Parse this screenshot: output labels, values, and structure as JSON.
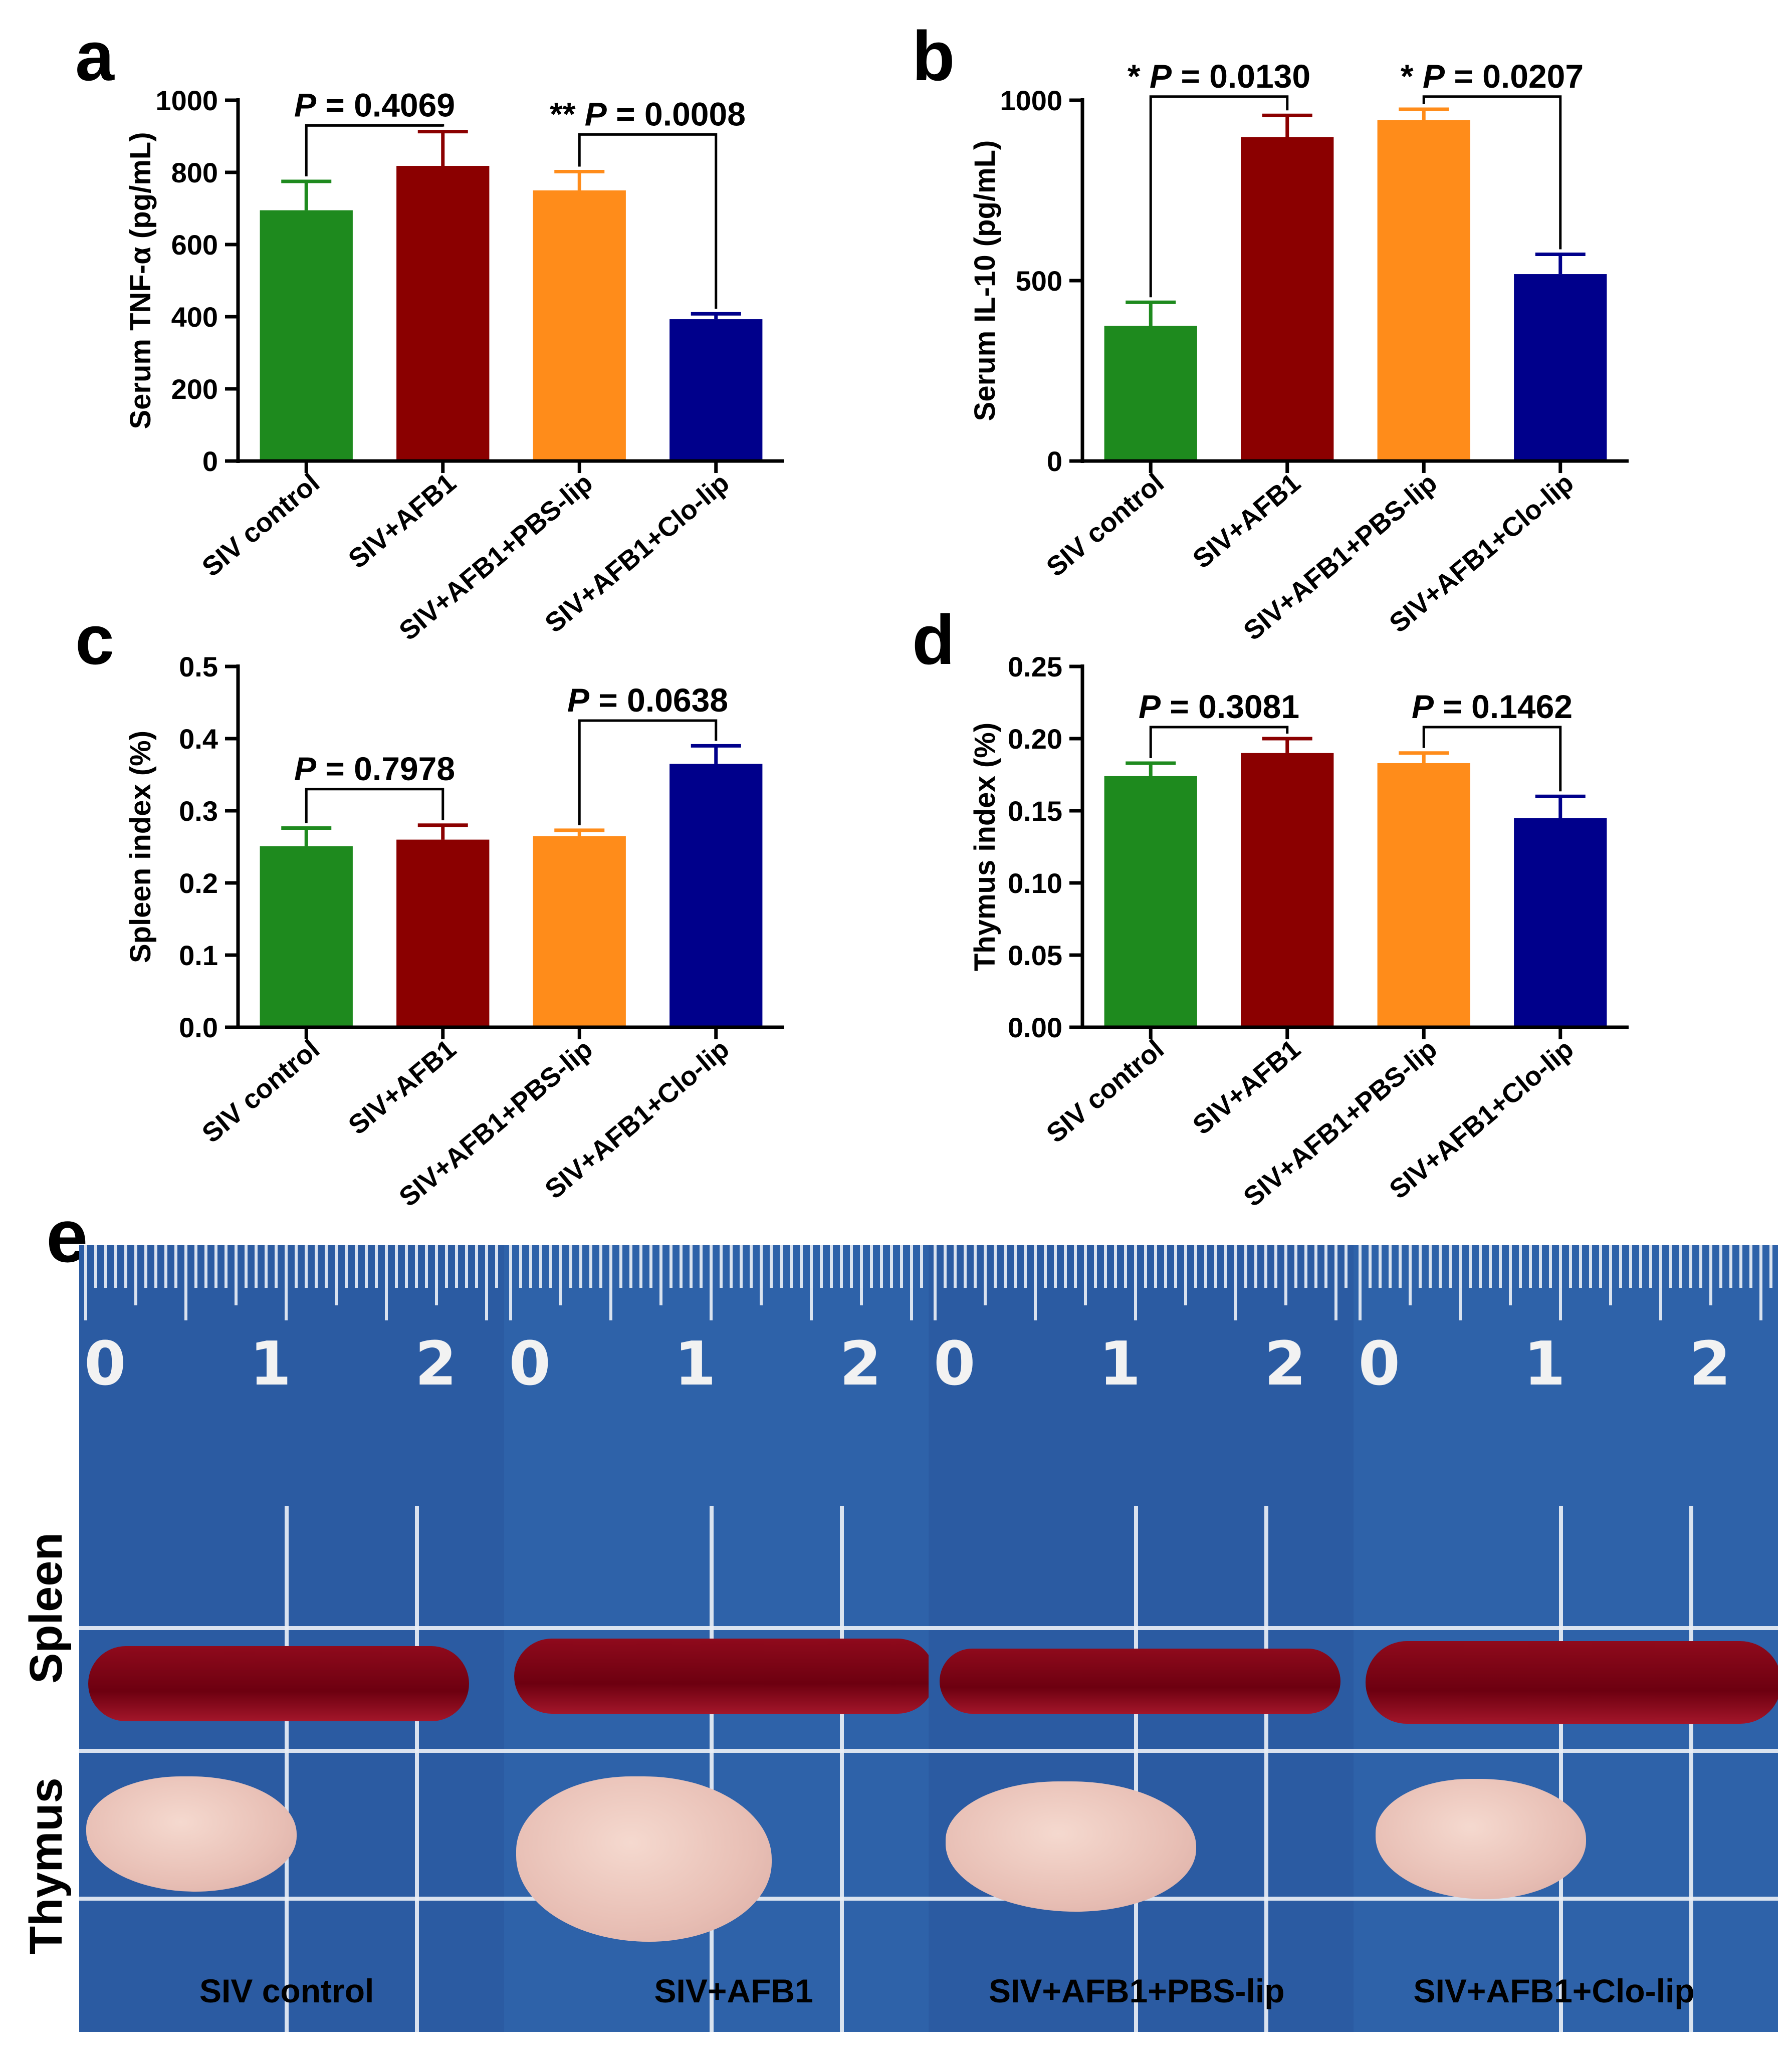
{
  "chart_data": [
    {
      "type": "bar",
      "panel": "a",
      "title": "",
      "xlabel": "",
      "ylabel": "Serum TNF-α (pg/mL)",
      "categories": [
        "SIV control",
        "SIV+AFB1",
        "SIV+AFB1+PBS-lip",
        "SIV+AFB1+Clo-lip"
      ],
      "values": [
        695,
        818,
        750,
        393
      ],
      "errors": [
        80,
        95,
        52,
        15
      ],
      "colors": [
        "#1e8a1e",
        "#8b0000",
        "#ff8c1a",
        "#00008b"
      ],
      "ylim": [
        0,
        1000
      ],
      "yticks": [
        "0",
        "200",
        "400",
        "600",
        "800",
        "1000"
      ],
      "yticks_values": [
        0,
        200,
        400,
        600,
        800,
        1000
      ],
      "comparisons": [
        {
          "from": 0,
          "to": 1,
          "stars": "",
          "p_label": "P",
          "p_value": " = 0.4069",
          "y": 930
        },
        {
          "from": 2,
          "to": 3,
          "stars": "**",
          "p_label": "P",
          "p_value": " = 0.0008",
          "y": 905
        }
      ]
    },
    {
      "type": "bar",
      "panel": "b",
      "title": "",
      "xlabel": "",
      "ylabel": "Serum IL-10 (pg/mL)",
      "categories": [
        "SIV control",
        "SIV+AFB1",
        "SIV+AFB1+PBS-lip",
        "SIV+AFB1+Clo-lip"
      ],
      "values": [
        375,
        898,
        945,
        518
      ],
      "errors": [
        65,
        60,
        30,
        55
      ],
      "colors": [
        "#1e8a1e",
        "#8b0000",
        "#ff8c1a",
        "#00008b"
      ],
      "ylim": [
        0,
        1000
      ],
      "yticks": [
        "0",
        "500",
        "1000"
      ],
      "yticks_values": [
        0,
        500,
        1000
      ],
      "comparisons": [
        {
          "from": 0,
          "to": 1,
          "stars": "*",
          "p_label": "P",
          "p_value": " = 0.0130",
          "y": 1010
        },
        {
          "from": 2,
          "to": 3,
          "stars": "*",
          "p_label": "P",
          "p_value": " = 0.0207",
          "y": 1010
        }
      ]
    },
    {
      "type": "bar",
      "panel": "c",
      "title": "",
      "xlabel": "",
      "ylabel": "Spleen index (%)",
      "categories": [
        "SIV control",
        "SIV+AFB1",
        "SIV+AFB1+PBS-lip",
        "SIV+AFB1+Clo-lip"
      ],
      "values": [
        0.251,
        0.26,
        0.265,
        0.365
      ],
      "errors": [
        0.025,
        0.02,
        0.008,
        0.025
      ],
      "colors": [
        "#1e8a1e",
        "#8b0000",
        "#ff8c1a",
        "#00008b"
      ],
      "ylim": [
        0,
        0.5
      ],
      "yticks": [
        "0.0",
        "0.1",
        "0.2",
        "0.3",
        "0.4",
        "0.5"
      ],
      "yticks_values": [
        0,
        0.1,
        0.2,
        0.3,
        0.4,
        0.5
      ],
      "comparisons": [
        {
          "from": 0,
          "to": 1,
          "stars": "",
          "p_label": "P",
          "p_value": " = 0.7978",
          "y": 0.33
        },
        {
          "from": 2,
          "to": 3,
          "stars": "",
          "p_label": "P",
          "p_value": " = 0.0638",
          "y": 0.425
        }
      ]
    },
    {
      "type": "bar",
      "panel": "d",
      "title": "",
      "xlabel": "",
      "ylabel": "Thymus index (%)",
      "categories": [
        "SIV control",
        "SIV+AFB1",
        "SIV+AFB1+PBS-lip",
        "SIV+AFB1+Clo-lip"
      ],
      "values": [
        0.174,
        0.19,
        0.183,
        0.145
      ],
      "errors": [
        0.009,
        0.01,
        0.007,
        0.015
      ],
      "colors": [
        "#1e8a1e",
        "#8b0000",
        "#ff8c1a",
        "#00008b"
      ],
      "ylim": [
        0,
        0.25
      ],
      "yticks": [
        "0.00",
        "0.05",
        "0.10",
        "0.15",
        "0.20",
        "0.25"
      ],
      "yticks_values": [
        0,
        0.05,
        0.1,
        0.15,
        0.2,
        0.25
      ],
      "comparisons": [
        {
          "from": 0,
          "to": 1,
          "stars": "",
          "p_label": "P",
          "p_value": " = 0.3081",
          "y": 0.208
        },
        {
          "from": 2,
          "to": 3,
          "stars": "",
          "p_label": "P",
          "p_value": " = 0.1462",
          "y": 0.208
        }
      ]
    }
  ],
  "photo": {
    "panel": "e",
    "row_labels": [
      "Spleen",
      "Thymus"
    ],
    "sample_labels": [
      "SIV control",
      "SIV+AFB1",
      "SIV+AFB1+PBS-lip",
      "SIV+AFB1+Clo-lip"
    ],
    "ruler_numbers": [
      [
        "0",
        "1",
        "2"
      ],
      [
        "0",
        "1",
        "2"
      ],
      [
        "0",
        "1",
        "2"
      ],
      [
        "0",
        "1",
        "2"
      ]
    ],
    "colors": {
      "background": "#2c5fa6",
      "spleen": "#7a0014",
      "thymus": "#efd0c6",
      "grid": "#e9eef5"
    }
  }
}
